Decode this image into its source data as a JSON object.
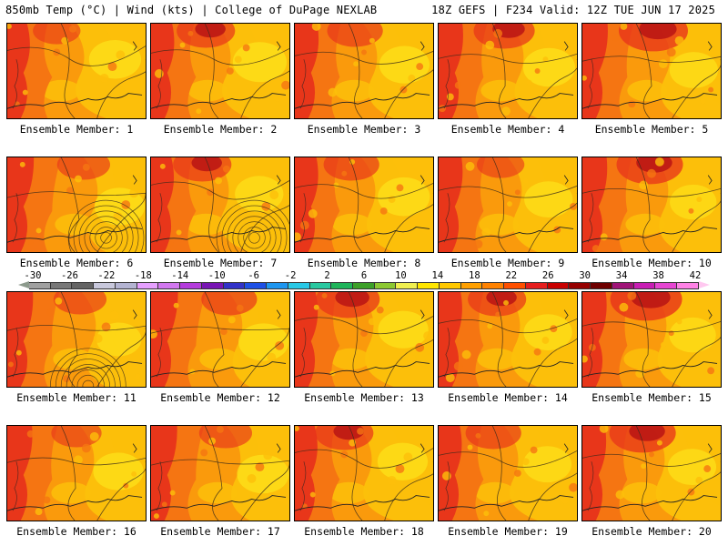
{
  "header": {
    "left": "850mb Temp (°C) | Wind (kts) | College of DuPage NEXLAB",
    "right": "18Z GEFS | F234 Valid: 12Z TUE JUN 17 2025"
  },
  "panels": [
    {
      "label": "Ensemble Member: 1",
      "hot": 0.15,
      "yellow": 0.55
    },
    {
      "label": "Ensemble Member: 2",
      "hot": 0.35,
      "yellow": 0.6
    },
    {
      "label": "Ensemble Member: 3",
      "hot": 0.3,
      "yellow": 0.5
    },
    {
      "label": "Ensemble Member: 4",
      "hot": 0.4,
      "yellow": 0.55
    },
    {
      "label": "Ensemble Member: 5",
      "hot": 0.55,
      "yellow": 0.45
    },
    {
      "label": "Ensemble Member: 6",
      "hot": 0.25,
      "yellow": 0.5
    },
    {
      "label": "Ensemble Member: 7",
      "hot": 0.35,
      "yellow": 0.45
    },
    {
      "label": "Ensemble Member: 8",
      "hot": 0.3,
      "yellow": 0.55
    },
    {
      "label": "Ensemble Member: 9",
      "hot": 0.15,
      "yellow": 0.45
    },
    {
      "label": "Ensemble Member: 10",
      "hot": 0.5,
      "yellow": 0.4
    },
    {
      "label": "Ensemble Member: 11",
      "hot": 0.25,
      "yellow": 0.35
    },
    {
      "label": "Ensemble Member: 12",
      "hot": 0.3,
      "yellow": 0.5
    },
    {
      "label": "Ensemble Member: 13",
      "hot": 0.45,
      "yellow": 0.5
    },
    {
      "label": "Ensemble Member: 14",
      "hot": 0.35,
      "yellow": 0.45
    },
    {
      "label": "Ensemble Member: 15",
      "hot": 0.6,
      "yellow": 0.4
    },
    {
      "label": "Ensemble Member: 16",
      "hot": 0.2,
      "yellow": 0.5
    },
    {
      "label": "Ensemble Member: 17",
      "hot": 0.25,
      "yellow": 0.55
    },
    {
      "label": "Ensemble Member: 18",
      "hot": 0.35,
      "yellow": 0.5
    },
    {
      "label": "Ensemble Member: 19",
      "hot": 0.3,
      "yellow": 0.45
    },
    {
      "label": "Ensemble Member: 20",
      "hot": 0.5,
      "yellow": 0.45
    }
  ],
  "colorbar": {
    "ticks": [
      "-30",
      "-26",
      "-22",
      "-18",
      "-14",
      "-10",
      "-6",
      "-2",
      "2",
      "6",
      "10",
      "14",
      "18",
      "22",
      "26",
      "30",
      "34",
      "38",
      "42"
    ],
    "colors": [
      "#8c9a8c",
      "#a0a0a0",
      "#787878",
      "#646464",
      "#c8c8dc",
      "#b4b4d2",
      "#e6a0ff",
      "#d278f0",
      "#b43cdc",
      "#7814b4",
      "#3232c8",
      "#1e50e6",
      "#1e96f0",
      "#28c8e6",
      "#28c8a0",
      "#1eb45a",
      "#3ca028",
      "#8cc832",
      "#f0f050",
      "#ffe600",
      "#ffc800",
      "#ffa000",
      "#ff8200",
      "#ff5000",
      "#e61e1e",
      "#c80000",
      "#960000",
      "#6e0000",
      "#a01478",
      "#c81eb4",
      "#e646d2",
      "#ff82e6",
      "#ffc8f0"
    ],
    "zone_colors": {
      "yellow": "#fde11a",
      "gold": "#fcbf0a",
      "orange": "#fa9a0c",
      "darkorange": "#f57512",
      "red": "#e8361a",
      "darkred": "#b81414"
    }
  }
}
